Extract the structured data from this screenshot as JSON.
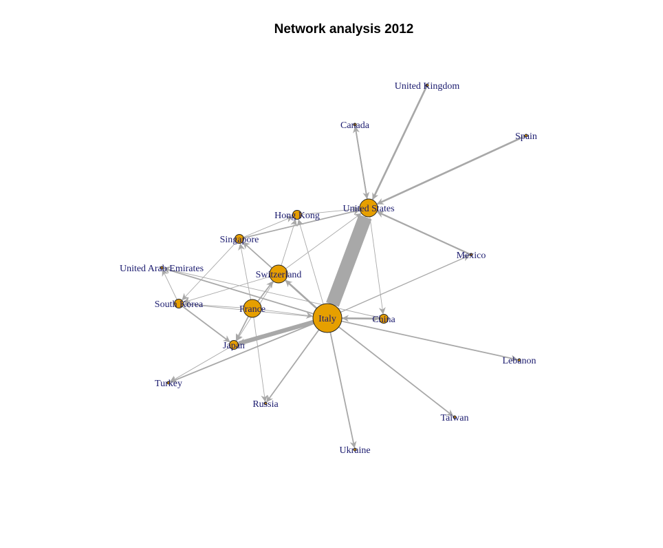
{
  "chart_data": {
    "type": "network",
    "title": "Network analysis 2012",
    "style": {
      "node_fill": "#E69F00",
      "node_stroke": "#222222",
      "edge_color": "#A8A8A8",
      "label_color": "#1A1A6E"
    },
    "nodes": [
      {
        "id": "italy",
        "label": "Italy",
        "size": 3
      },
      {
        "id": "us",
        "label": "United States",
        "size": 2
      },
      {
        "id": "france",
        "label": "France",
        "size": 2
      },
      {
        "id": "switzerland",
        "label": "Switzerland",
        "size": 2
      },
      {
        "id": "china",
        "label": "China",
        "size": 1
      },
      {
        "id": "japan",
        "label": "Japan",
        "size": 1
      },
      {
        "id": "singapore",
        "label": "Singapore",
        "size": 1
      },
      {
        "id": "southkorea",
        "label": "South Korea",
        "size": 1
      },
      {
        "id": "hongkong",
        "label": "Hong Kong",
        "size": 1
      },
      {
        "id": "uk",
        "label": "United Kingdom",
        "size": 0
      },
      {
        "id": "canada",
        "label": "Canada",
        "size": 0
      },
      {
        "id": "spain",
        "label": "Spain",
        "size": 0
      },
      {
        "id": "mexico",
        "label": "Mexico",
        "size": 0
      },
      {
        "id": "uae",
        "label": "United Arab Emirates",
        "size": 0
      },
      {
        "id": "lebanon",
        "label": "Lebanon",
        "size": 0
      },
      {
        "id": "turkey",
        "label": "Turkey",
        "size": 0
      },
      {
        "id": "russia",
        "label": "Russia",
        "size": 0
      },
      {
        "id": "taiwan",
        "label": "Taiwan",
        "size": 0
      },
      {
        "id": "ukraine",
        "label": "Ukraine",
        "size": 0
      }
    ],
    "edges": [
      {
        "from": "italy",
        "to": "us",
        "weight": 22
      },
      {
        "from": "italy",
        "to": "japan",
        "weight": 7
      },
      {
        "from": "italy",
        "to": "china",
        "weight": 3
      },
      {
        "from": "china",
        "to": "italy",
        "weight": 2
      },
      {
        "from": "italy",
        "to": "switzerland",
        "weight": 3
      },
      {
        "from": "italy",
        "to": "singapore",
        "weight": 1
      },
      {
        "from": "italy",
        "to": "hongkong",
        "weight": 1
      },
      {
        "from": "italy",
        "to": "southkorea",
        "weight": 1
      },
      {
        "from": "italy",
        "to": "uae",
        "weight": 2
      },
      {
        "from": "italy",
        "to": "turkey",
        "weight": 2
      },
      {
        "from": "italy",
        "to": "russia",
        "weight": 2
      },
      {
        "from": "italy",
        "to": "ukraine",
        "weight": 2
      },
      {
        "from": "italy",
        "to": "taiwan",
        "weight": 2
      },
      {
        "from": "italy",
        "to": "lebanon",
        "weight": 2
      },
      {
        "from": "italy",
        "to": "mexico",
        "weight": 1.5
      },
      {
        "from": "france",
        "to": "italy",
        "weight": 1
      },
      {
        "from": "france",
        "to": "switzerland",
        "weight": 2
      },
      {
        "from": "france",
        "to": "japan",
        "weight": 2
      },
      {
        "from": "france",
        "to": "russia",
        "weight": 1
      },
      {
        "from": "france",
        "to": "singapore",
        "weight": 1
      },
      {
        "from": "france",
        "to": "southkorea",
        "weight": 1
      },
      {
        "from": "switzerland",
        "to": "us",
        "weight": 1
      },
      {
        "from": "switzerland",
        "to": "hongkong",
        "weight": 1
      },
      {
        "from": "switzerland",
        "to": "singapore",
        "weight": 2
      },
      {
        "from": "switzerland",
        "to": "southkorea",
        "weight": 1
      },
      {
        "from": "switzerland",
        "to": "japan",
        "weight": 1
      },
      {
        "from": "uk",
        "to": "us",
        "weight": 3
      },
      {
        "from": "spain",
        "to": "us",
        "weight": 3
      },
      {
        "from": "mexico",
        "to": "us",
        "weight": 2.5
      },
      {
        "from": "canada",
        "to": "us",
        "weight": 2
      },
      {
        "from": "us",
        "to": "canada",
        "weight": 2
      },
      {
        "from": "us",
        "to": "china",
        "weight": 1
      },
      {
        "from": "singapore",
        "to": "us",
        "weight": 2
      },
      {
        "from": "singapore",
        "to": "southkorea",
        "weight": 1
      },
      {
        "from": "singapore",
        "to": "hongkong",
        "weight": 1
      },
      {
        "from": "hongkong",
        "to": "us",
        "weight": 1
      },
      {
        "from": "southkorea",
        "to": "japan",
        "weight": 2
      },
      {
        "from": "southkorea",
        "to": "uae",
        "weight": 1
      },
      {
        "from": "japan",
        "to": "turkey",
        "weight": 1
      },
      {
        "from": "china",
        "to": "uae",
        "weight": 1
      }
    ]
  }
}
